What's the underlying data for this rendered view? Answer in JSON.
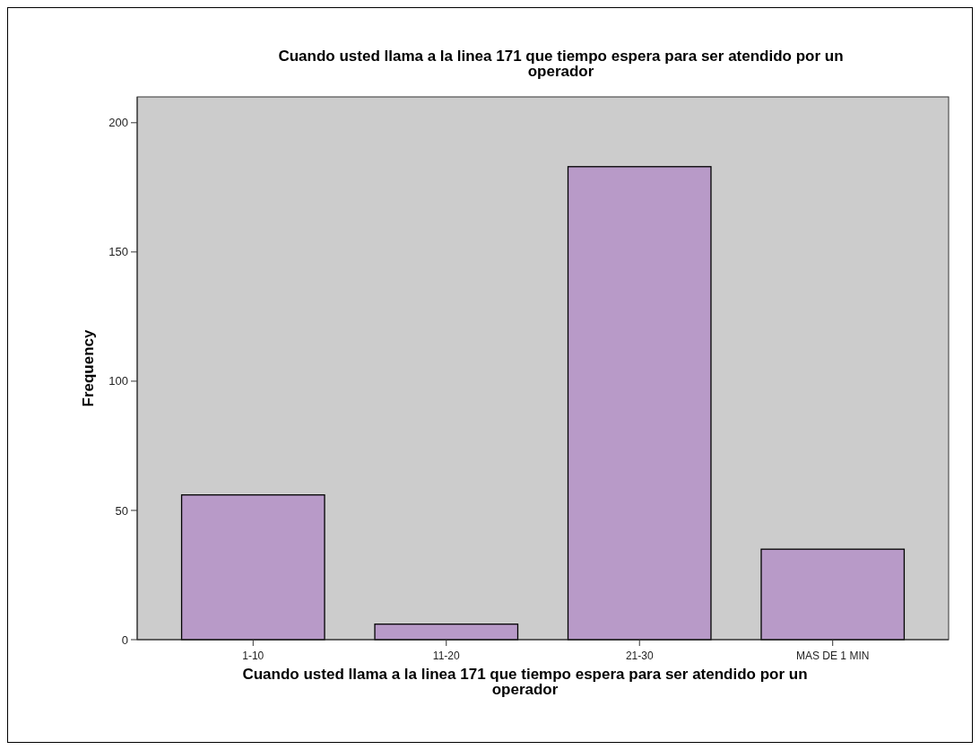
{
  "chart_data": {
    "type": "bar",
    "title": "Cuando usted llama a la linea 171 que tiempo espera para ser atendido por un operador",
    "xlabel": "Cuando usted llama a la linea 171 que tiempo espera para ser atendido por un operador",
    "ylabel": "Frequency",
    "categories": [
      "1-10",
      "11-20",
      "21-30",
      "MAS DE 1 MIN"
    ],
    "values": [
      56,
      6,
      183,
      35
    ],
    "color": "#b89ac8",
    "ylim": [
      0,
      210
    ],
    "yticks": [
      0,
      50,
      100,
      150,
      200
    ],
    "grid": false
  }
}
